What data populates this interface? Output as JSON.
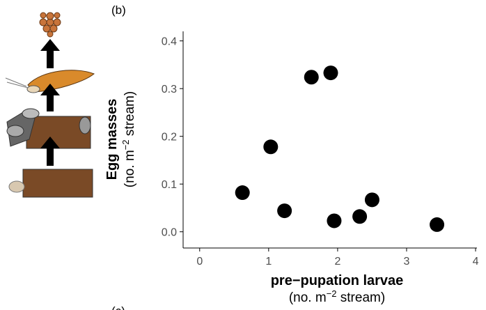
{
  "panel_labels": [
    "(b)",
    "(c)"
  ],
  "chart_data": {
    "type": "scatter",
    "x_label": {
      "title": "pre−pupation larvae",
      "unit": [
        "(no. m",
        "−2",
        " stream)"
      ]
    },
    "y_label": {
      "title": "Egg masses",
      "unit": [
        "(no. m",
        "−2",
        " stream)"
      ]
    },
    "x": [
      0.62,
      1.03,
      1.23,
      1.62,
      1.9,
      1.95,
      2.32,
      2.5,
      3.44
    ],
    "values": [
      0.082,
      0.178,
      0.044,
      0.324,
      0.333,
      0.023,
      0.032,
      0.067,
      0.015
    ],
    "color": "#000000",
    "xlim": [
      -0.24,
      4.02
    ],
    "ylim": [
      -0.034,
      0.42
    ],
    "xticks": [
      0,
      1,
      2,
      3,
      4
    ],
    "yticks": [
      {
        "value": 0,
        "label": "0.0"
      },
      0.1,
      0.2,
      0.3,
      0.4
    ]
  }
}
